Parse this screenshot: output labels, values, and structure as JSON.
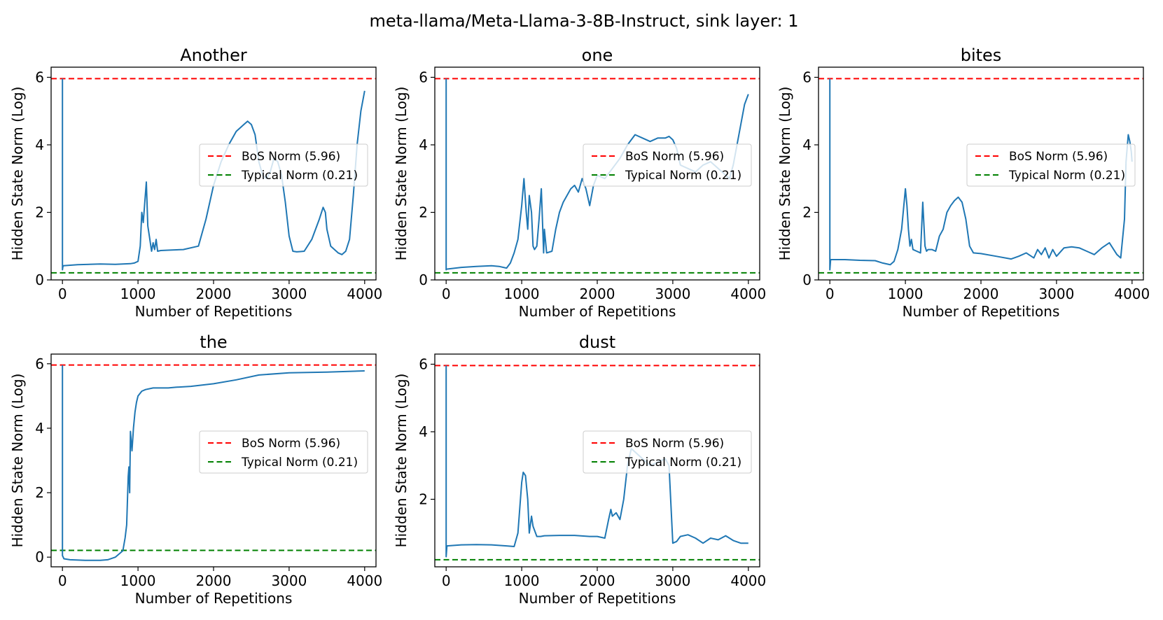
{
  "figure_title": "meta-llama/Meta-Llama-3-8B-Instruct, sink layer: 1",
  "colors": {
    "series": "#1f77b4",
    "bos": "#ff0000",
    "typical": "#008000"
  },
  "chart_data": [
    {
      "type": "line",
      "title": "Another",
      "xlabel": "Number of Repetitions",
      "ylabel": "Hidden State Norm (Log)",
      "xlim": [
        -150,
        4150
      ],
      "ylim": [
        0,
        6.3
      ],
      "xticks": [
        0,
        1000,
        2000,
        3000,
        4000
      ],
      "yticks": [
        0,
        2,
        4,
        6
      ],
      "legend": {
        "position": "center-right",
        "entries": [
          "BoS Norm (5.96)",
          "Typical Norm (0.21)"
        ]
      },
      "reference_lines": [
        {
          "name": "BoS Norm (5.96)",
          "y": 5.96
        },
        {
          "name": "Typical Norm (0.21)",
          "y": 0.21
        }
      ],
      "series": [
        {
          "name": "hidden state norm",
          "x": [
            0,
            0,
            5,
            10,
            200,
            500,
            700,
            900,
            950,
            1000,
            1030,
            1050,
            1070,
            1090,
            1110,
            1130,
            1150,
            1180,
            1200,
            1220,
            1240,
            1260,
            1300,
            1400,
            1600,
            1800,
            1900,
            1950,
            2000,
            2100,
            2200,
            2300,
            2400,
            2450,
            2500,
            2550,
            2600,
            2650,
            2700,
            2750,
            2800,
            2850,
            2900,
            2950,
            3000,
            3050,
            3100,
            3150,
            3200,
            3300,
            3400,
            3450,
            3480,
            3500,
            3550,
            3600,
            3650,
            3700,
            3750,
            3800,
            3850,
            3900,
            3950,
            4000
          ],
          "y": [
            5.96,
            0.3,
            0.38,
            0.42,
            0.45,
            0.47,
            0.46,
            0.48,
            0.5,
            0.55,
            1.0,
            2.0,
            1.7,
            2.3,
            2.9,
            1.6,
            1.3,
            0.85,
            1.1,
            0.9,
            1.2,
            0.85,
            0.87,
            0.88,
            0.9,
            1.0,
            1.8,
            2.3,
            2.8,
            3.5,
            4.0,
            4.4,
            4.6,
            4.7,
            4.6,
            4.3,
            3.5,
            3.1,
            3.0,
            3.2,
            3.6,
            3.5,
            3.1,
            2.3,
            1.3,
            0.85,
            0.83,
            0.84,
            0.85,
            1.2,
            1.8,
            2.15,
            2.0,
            1.5,
            1.0,
            0.9,
            0.8,
            0.75,
            0.85,
            1.2,
            2.5,
            4.0,
            5.0,
            5.6
          ]
        }
      ]
    },
    {
      "type": "line",
      "title": "one",
      "xlabel": "Number of Repetitions",
      "ylabel": "Hidden State Norm (Log)",
      "xlim": [
        -150,
        4150
      ],
      "ylim": [
        0,
        6.3
      ],
      "xticks": [
        0,
        1000,
        2000,
        3000,
        4000
      ],
      "yticks": [
        0,
        2,
        4,
        6
      ],
      "legend": {
        "position": "center-right",
        "entries": [
          "BoS Norm (5.96)",
          "Typical Norm (0.21)"
        ]
      },
      "reference_lines": [
        {
          "name": "BoS Norm (5.96)",
          "y": 5.96
        },
        {
          "name": "Typical Norm (0.21)",
          "y": 0.21
        }
      ],
      "series": [
        {
          "name": "hidden state norm",
          "x": [
            0,
            0,
            5,
            200,
            400,
            600,
            700,
            800,
            850,
            900,
            950,
            1000,
            1030,
            1060,
            1080,
            1100,
            1130,
            1150,
            1170,
            1200,
            1230,
            1260,
            1290,
            1300,
            1330,
            1400,
            1450,
            1500,
            1550,
            1600,
            1650,
            1700,
            1750,
            1800,
            1850,
            1900,
            1950,
            2000,
            2100,
            2200,
            2300,
            2400,
            2500,
            2600,
            2700,
            2800,
            2900,
            2950,
            3000,
            3050,
            3100,
            3200,
            3300,
            3400,
            3500,
            3600,
            3700,
            3750,
            3800,
            3850,
            3900,
            3950,
            4000
          ],
          "y": [
            5.96,
            0.3,
            0.32,
            0.37,
            0.4,
            0.42,
            0.4,
            0.35,
            0.5,
            0.8,
            1.2,
            2.2,
            3.0,
            2.0,
            1.5,
            2.5,
            2.0,
            1.0,
            0.9,
            1.0,
            1.8,
            2.7,
            0.8,
            1.5,
            0.8,
            0.85,
            1.5,
            2.0,
            2.3,
            2.5,
            2.7,
            2.8,
            2.6,
            3.0,
            2.7,
            2.2,
            2.8,
            3.1,
            3.0,
            3.3,
            3.6,
            4.0,
            4.3,
            4.2,
            4.1,
            4.2,
            4.2,
            4.25,
            4.15,
            3.9,
            3.4,
            3.3,
            3.2,
            3.4,
            3.5,
            3.3,
            3.1,
            3.0,
            3.4,
            4.0,
            4.6,
            5.2,
            5.5
          ]
        }
      ]
    },
    {
      "type": "line",
      "title": "bites",
      "xlabel": "Number of Repetitions",
      "ylabel": "Hidden State Norm (Log)",
      "xlim": [
        -150,
        4150
      ],
      "ylim": [
        0,
        6.3
      ],
      "xticks": [
        0,
        1000,
        2000,
        3000,
        4000
      ],
      "yticks": [
        0,
        2,
        4,
        6
      ],
      "legend": {
        "position": "center-right",
        "entries": [
          "BoS Norm (5.96)",
          "Typical Norm (0.21)"
        ]
      },
      "reference_lines": [
        {
          "name": "BoS Norm (5.96)",
          "y": 5.96
        },
        {
          "name": "Typical Norm (0.21)",
          "y": 0.21
        }
      ],
      "series": [
        {
          "name": "hidden state norm",
          "x": [
            0,
            0,
            10,
            200,
            400,
            600,
            700,
            800,
            850,
            900,
            950,
            1000,
            1020,
            1040,
            1060,
            1080,
            1100,
            1150,
            1200,
            1230,
            1260,
            1280,
            1300,
            1350,
            1400,
            1450,
            1500,
            1550,
            1600,
            1650,
            1700,
            1750,
            1800,
            1850,
            1900,
            2000,
            2200,
            2400,
            2500,
            2600,
            2700,
            2750,
            2800,
            2850,
            2900,
            2950,
            3000,
            3100,
            3200,
            3300,
            3400,
            3500,
            3600,
            3700,
            3800,
            3850,
            3900,
            3920,
            3950,
            3970,
            3990,
            4000
          ],
          "y": [
            5.96,
            0.3,
            0.6,
            0.6,
            0.58,
            0.57,
            0.5,
            0.45,
            0.55,
            0.9,
            1.5,
            2.7,
            2.2,
            1.5,
            1.0,
            1.2,
            0.9,
            0.85,
            0.8,
            2.3,
            1.0,
            0.85,
            0.9,
            0.9,
            0.85,
            1.3,
            1.5,
            2.0,
            2.2,
            2.35,
            2.45,
            2.3,
            1.8,
            1.0,
            0.8,
            0.78,
            0.7,
            0.62,
            0.7,
            0.8,
            0.65,
            0.9,
            0.75,
            0.95,
            0.65,
            0.9,
            0.7,
            0.95,
            0.98,
            0.95,
            0.85,
            0.75,
            0.95,
            1.1,
            0.75,
            0.65,
            1.8,
            3.5,
            4.3,
            4.1,
            3.8,
            3.5
          ]
        }
      ]
    },
    {
      "type": "line",
      "title": "the",
      "xlabel": "Number of Repetitions",
      "ylabel": "Hidden State Norm (Log)",
      "xlim": [
        -150,
        4150
      ],
      "ylim": [
        -0.3,
        6.3
      ],
      "xticks": [
        0,
        1000,
        2000,
        3000,
        4000
      ],
      "yticks": [
        0,
        2,
        4,
        6
      ],
      "legend": {
        "position": "center-right",
        "entries": [
          "BoS Norm (5.96)",
          "Typical Norm (0.21)"
        ]
      },
      "reference_lines": [
        {
          "name": "BoS Norm (5.96)",
          "y": 5.96
        },
        {
          "name": "Typical Norm (0.21)",
          "y": 0.21
        }
      ],
      "series": [
        {
          "name": "hidden state norm",
          "x": [
            0,
            0,
            20,
            100,
            300,
            500,
            600,
            700,
            750,
            800,
            830,
            850,
            870,
            880,
            890,
            900,
            920,
            940,
            960,
            980,
            1000,
            1050,
            1100,
            1200,
            1300,
            1400,
            1500,
            1700,
            2000,
            2300,
            2600,
            3000,
            3500,
            4000
          ],
          "y": [
            5.96,
            0.05,
            -0.05,
            -0.08,
            -0.1,
            -0.1,
            -0.08,
            0.0,
            0.1,
            0.2,
            0.6,
            1.0,
            2.5,
            2.8,
            2.0,
            3.9,
            3.3,
            4.0,
            4.5,
            4.8,
            5.0,
            5.15,
            5.2,
            5.25,
            5.25,
            5.25,
            5.27,
            5.3,
            5.38,
            5.5,
            5.65,
            5.72,
            5.74,
            5.78
          ]
        }
      ]
    },
    {
      "type": "line",
      "title": "dust",
      "xlabel": "Number of Repetitions",
      "ylabel": "Hidden State Norm (Log)",
      "xlim": [
        -150,
        4150
      ],
      "ylim": [
        0.0,
        6.3
      ],
      "xticks": [
        0,
        1000,
        2000,
        3000,
        4000
      ],
      "yticks": [
        2,
        4,
        6
      ],
      "legend": {
        "position": "center-right",
        "entries": [
          "BoS Norm (5.96)",
          "Typical Norm (0.21)"
        ]
      },
      "reference_lines": [
        {
          "name": "BoS Norm (5.96)",
          "y": 5.96
        },
        {
          "name": "Typical Norm (0.21)",
          "y": 0.21
        }
      ],
      "series": [
        {
          "name": "hidden state norm",
          "x": [
            0,
            0,
            10,
            200,
            400,
            600,
            800,
            900,
            950,
            1000,
            1020,
            1050,
            1080,
            1100,
            1130,
            1150,
            1200,
            1250,
            1300,
            1500,
            1700,
            1900,
            2000,
            2100,
            2150,
            2180,
            2200,
            2250,
            2300,
            2350,
            2400,
            2450,
            2500,
            2600,
            2700,
            2800,
            2900,
            2950,
            3000,
            3050,
            3100,
            3200,
            3300,
            3400,
            3500,
            3600,
            3700,
            3800,
            3900,
            4000
          ],
          "y": [
            5.96,
            0.3,
            0.62,
            0.65,
            0.66,
            0.65,
            0.62,
            0.6,
            1.0,
            2.5,
            2.8,
            2.7,
            2.0,
            1.0,
            1.5,
            1.2,
            0.9,
            0.9,
            0.92,
            0.93,
            0.93,
            0.9,
            0.9,
            0.85,
            1.4,
            1.7,
            1.5,
            1.6,
            1.4,
            2.0,
            3.0,
            3.5,
            3.4,
            3.2,
            3.0,
            3.1,
            3.2,
            3.0,
            0.7,
            0.75,
            0.9,
            0.95,
            0.85,
            0.7,
            0.85,
            0.8,
            0.92,
            0.78,
            0.7,
            0.7
          ]
        }
      ]
    }
  ]
}
